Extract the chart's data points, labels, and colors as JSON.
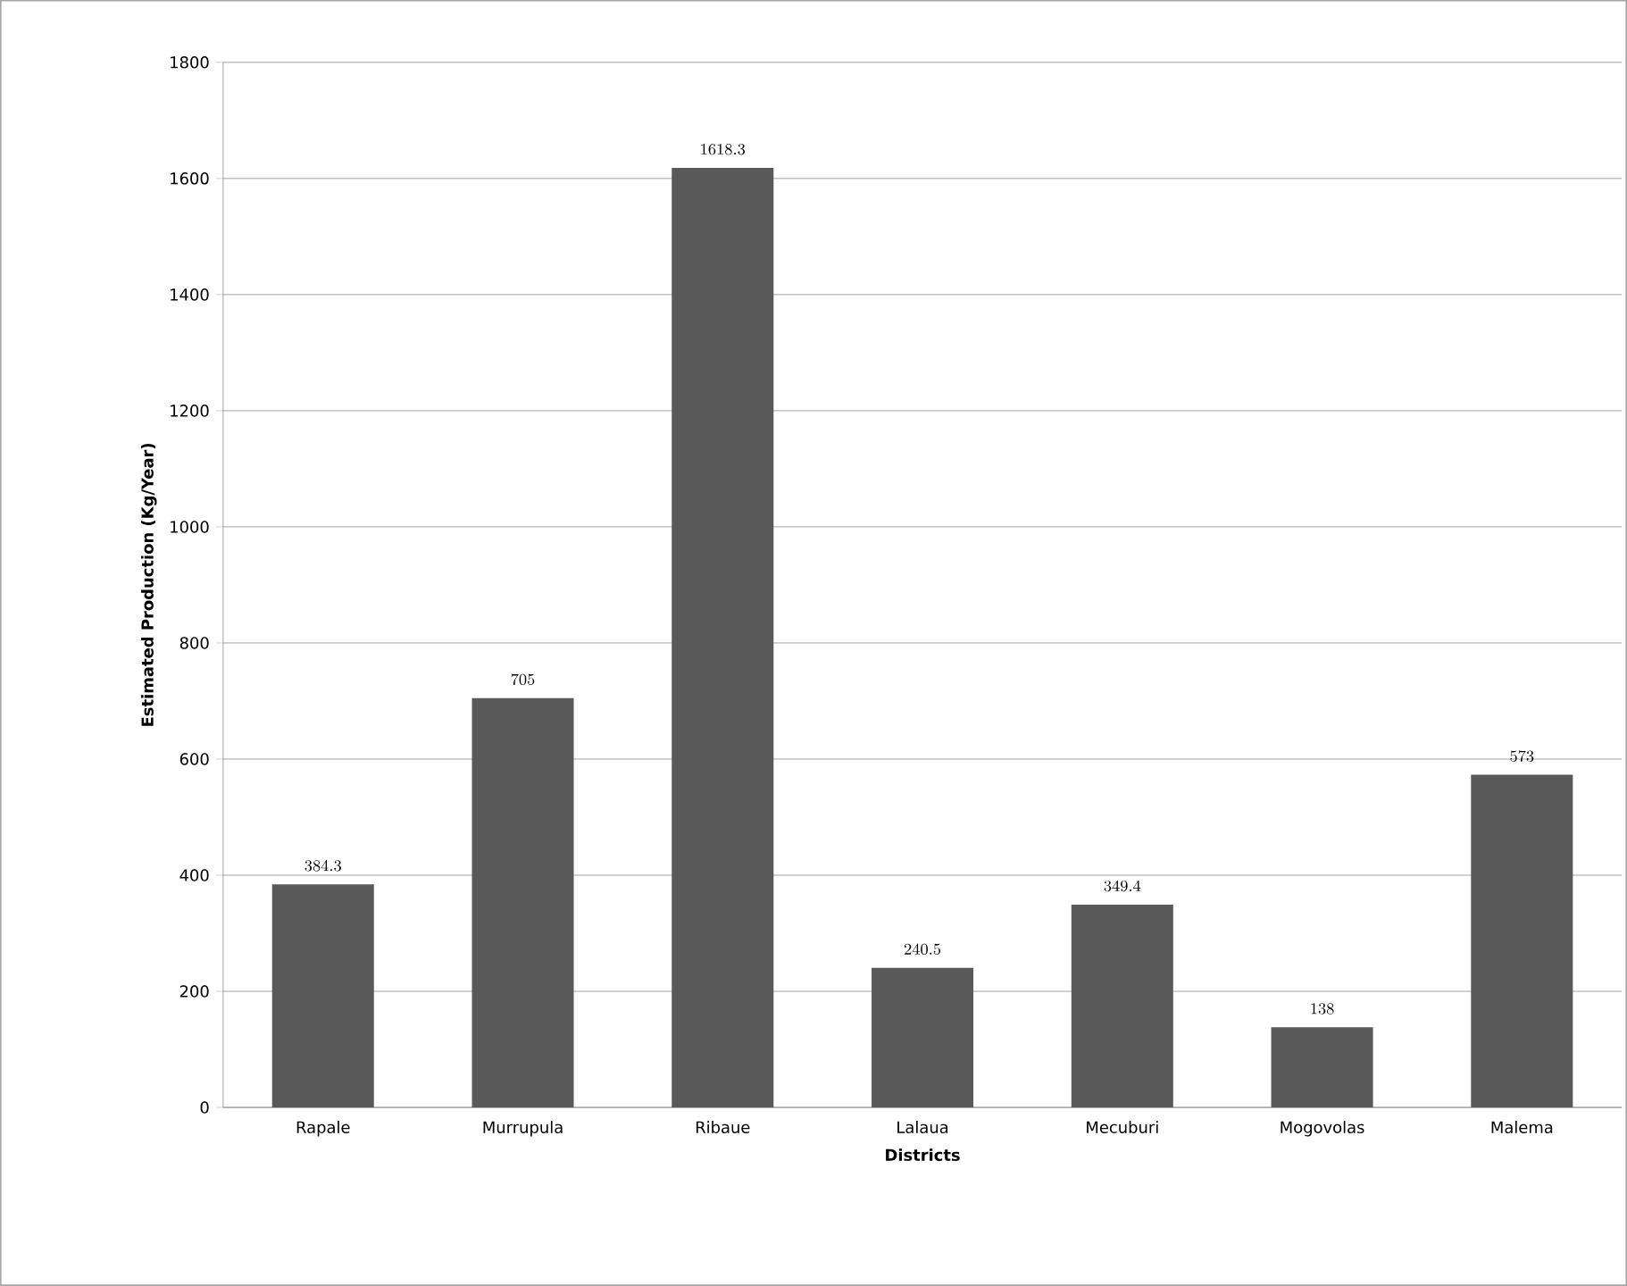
{
  "chart_data": {
    "type": "bar",
    "xlabel": "Districts",
    "ylabel": "Estimated  Production (Kg/Year)",
    "categories": [
      "Rapale",
      "Murrupula",
      "Ribaue",
      "Lalaua",
      "Mecuburi",
      "Mogovolas",
      "Malema"
    ],
    "values": [
      384.3,
      705,
      1618.3,
      240.5,
      349.4,
      138,
      573
    ],
    "color": "#595959",
    "ylim": [
      0,
      1800
    ],
    "yticks": [
      0,
      200,
      400,
      600,
      800,
      1000,
      1200,
      1400,
      1600,
      1800
    ],
    "grid": "y",
    "data_labels": true
  }
}
